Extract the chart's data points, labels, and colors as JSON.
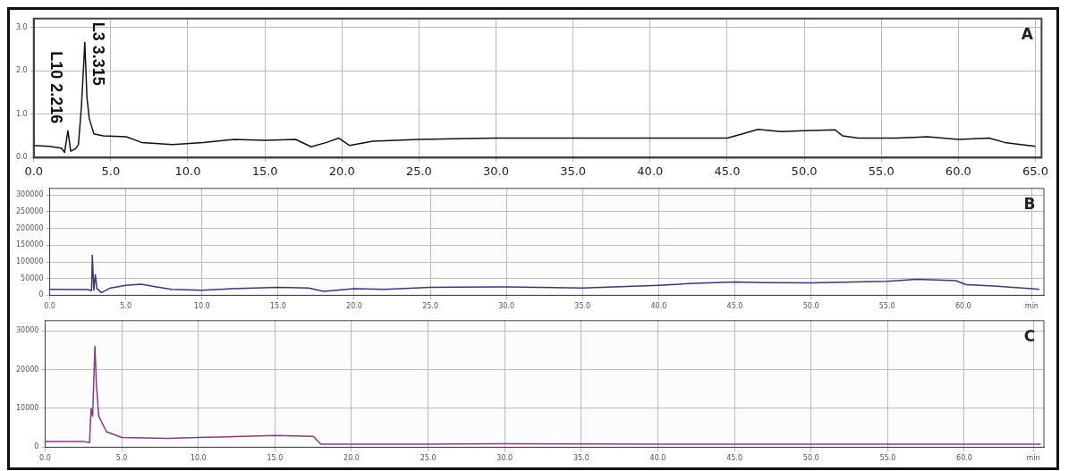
{
  "chart_data": [
    {
      "type": "line",
      "title": "A",
      "xlim": [
        0,
        65.4
      ],
      "ylim": [
        0,
        3.2
      ],
      "grid": true,
      "line_style": "solid",
      "marker": "none",
      "xticks": [
        {
          "value": 0,
          "label": "0.0"
        },
        {
          "value": 5,
          "label": "5.0"
        },
        {
          "value": 10,
          "label": "10.0"
        },
        {
          "value": 15,
          "label": "15.0"
        },
        {
          "value": 20,
          "label": "20.0"
        },
        {
          "value": 25,
          "label": "25.0"
        },
        {
          "value": 30,
          "label": "30.0"
        },
        {
          "value": 35,
          "label": "35.0"
        },
        {
          "value": 40,
          "label": "40.0"
        },
        {
          "value": 45,
          "label": "45.0"
        },
        {
          "value": 50,
          "label": "50.0"
        },
        {
          "value": 55,
          "label": "55.0"
        },
        {
          "value": 60,
          "label": "60.0"
        },
        {
          "value": 65,
          "label": "65.0"
        }
      ],
      "yticks": [
        {
          "value": 0,
          "label": "0.0"
        },
        {
          "value": 1,
          "label": "1.0"
        },
        {
          "value": 2,
          "label": "2.0"
        },
        {
          "value": 3,
          "label": "3.0"
        }
      ],
      "annotations": [
        {
          "text": "L10 2.216",
          "x": 2.216,
          "y": 0.62
        },
        {
          "text": "L3 3.315",
          "x": 3.315,
          "y": 2.65
        }
      ],
      "series": [
        {
          "color": "#111111",
          "x": [
            0,
            1.0,
            1.8,
            2.0,
            2.216,
            2.4,
            2.7,
            2.9,
            3.1,
            3.315,
            3.45,
            3.6,
            3.9,
            4.5,
            6.0,
            7.0,
            9.0,
            11.0,
            13.0,
            15.0,
            17.0,
            18.0,
            19.0,
            19.8,
            20.5,
            22.0,
            25.0,
            30.0,
            35.0,
            40.0,
            45.0,
            46.0,
            47.0,
            48.5,
            50.0,
            52.0,
            52.5,
            53.5,
            56,
            58,
            60,
            62,
            63,
            65
          ],
          "values": [
            0.28,
            0.26,
            0.22,
            0.12,
            0.62,
            0.15,
            0.2,
            0.3,
            1.2,
            2.65,
            1.4,
            0.9,
            0.55,
            0.5,
            0.48,
            0.35,
            0.3,
            0.35,
            0.42,
            0.4,
            0.42,
            0.25,
            0.35,
            0.45,
            0.28,
            0.38,
            0.42,
            0.45,
            0.45,
            0.45,
            0.45,
            0.55,
            0.65,
            0.6,
            0.62,
            0.64,
            0.5,
            0.45,
            0.45,
            0.48,
            0.42,
            0.45,
            0.35,
            0.26
          ]
        }
      ]
    },
    {
      "type": "line",
      "title": "B",
      "xlim": [
        0,
        65.3
      ],
      "ylim": [
        0,
        320000
      ],
      "grid": true,
      "line_style": "solid",
      "marker": "none",
      "xticks": [
        {
          "value": 0,
          "label": "0.0"
        },
        {
          "value": 5,
          "label": "5.0"
        },
        {
          "value": 10,
          "label": "10.0"
        },
        {
          "value": 15,
          "label": "15.0"
        },
        {
          "value": 20,
          "label": "20.0"
        },
        {
          "value": 25,
          "label": "25.0"
        },
        {
          "value": 30,
          "label": "30.0"
        },
        {
          "value": 35,
          "label": "35.0"
        },
        {
          "value": 40,
          "label": "40.0"
        },
        {
          "value": 45,
          "label": "45.0"
        },
        {
          "value": 50,
          "label": "50.0"
        },
        {
          "value": 55,
          "label": "55.0"
        },
        {
          "value": 60,
          "label": "60.0"
        },
        {
          "value": 64.5,
          "label": "min"
        }
      ],
      "yticks": [
        0,
        50000,
        100000,
        150000,
        200000,
        250000,
        300000
      ],
      "series": [
        {
          "color": "#3a3a6e",
          "x": [
            0,
            2.5,
            2.75,
            2.8,
            2.9,
            3.0,
            3.1,
            3.4,
            4,
            5,
            6,
            7,
            8,
            10,
            12,
            15,
            17,
            18,
            19,
            20,
            22,
            25,
            30,
            35,
            40,
            42,
            45,
            47,
            50,
            55,
            57,
            59.5,
            60.2,
            62,
            64.5,
            65
          ],
          "values": [
            18000,
            17000,
            14000,
            120000,
            15000,
            62000,
            20000,
            8000,
            22000,
            30000,
            33000,
            25000,
            18000,
            15000,
            20000,
            24000,
            22000,
            12000,
            16000,
            20000,
            18000,
            24000,
            25000,
            22000,
            30000,
            35000,
            40000,
            38000,
            37000,
            42000,
            48000,
            44000,
            32000,
            28000,
            20000,
            18000
          ]
        }
      ]
    },
    {
      "type": "line",
      "title": "C",
      "xlim": [
        0,
        65.2
      ],
      "ylim": [
        0,
        32600
      ],
      "grid": true,
      "line_style": "solid",
      "marker": "none",
      "xticks": [
        {
          "value": 0,
          "label": "0.0"
        },
        {
          "value": 5,
          "label": "5.0"
        },
        {
          "value": 10,
          "label": "10.0"
        },
        {
          "value": 15,
          "label": "15.0"
        },
        {
          "value": 20,
          "label": "20.0"
        },
        {
          "value": 25,
          "label": "25.0"
        },
        {
          "value": 30,
          "label": "30.0"
        },
        {
          "value": 35,
          "label": "35.0"
        },
        {
          "value": 40,
          "label": "40.0"
        },
        {
          "value": 45,
          "label": "45.0"
        },
        {
          "value": 50,
          "label": "50.0"
        },
        {
          "value": 55,
          "label": "55.0"
        },
        {
          "value": 60,
          "label": "60.0"
        },
        {
          "value": 64.5,
          "label": "min"
        }
      ],
      "yticks": [
        0,
        10000,
        20000,
        30000
      ],
      "series": [
        {
          "color": "#8a3a7e",
          "x": [
            0,
            2.5,
            2.9,
            3.0,
            3.1,
            3.25,
            3.35,
            3.5,
            4,
            5,
            8,
            10,
            15,
            17.5,
            18,
            25,
            30,
            40,
            50,
            60,
            65
          ],
          "values": [
            1500,
            1500,
            1200,
            10000,
            8000,
            26000,
            16000,
            8000,
            4000,
            2500,
            2300,
            2500,
            3000,
            2800,
            800,
            800,
            900,
            800,
            800,
            800,
            800
          ]
        }
      ]
    }
  ]
}
